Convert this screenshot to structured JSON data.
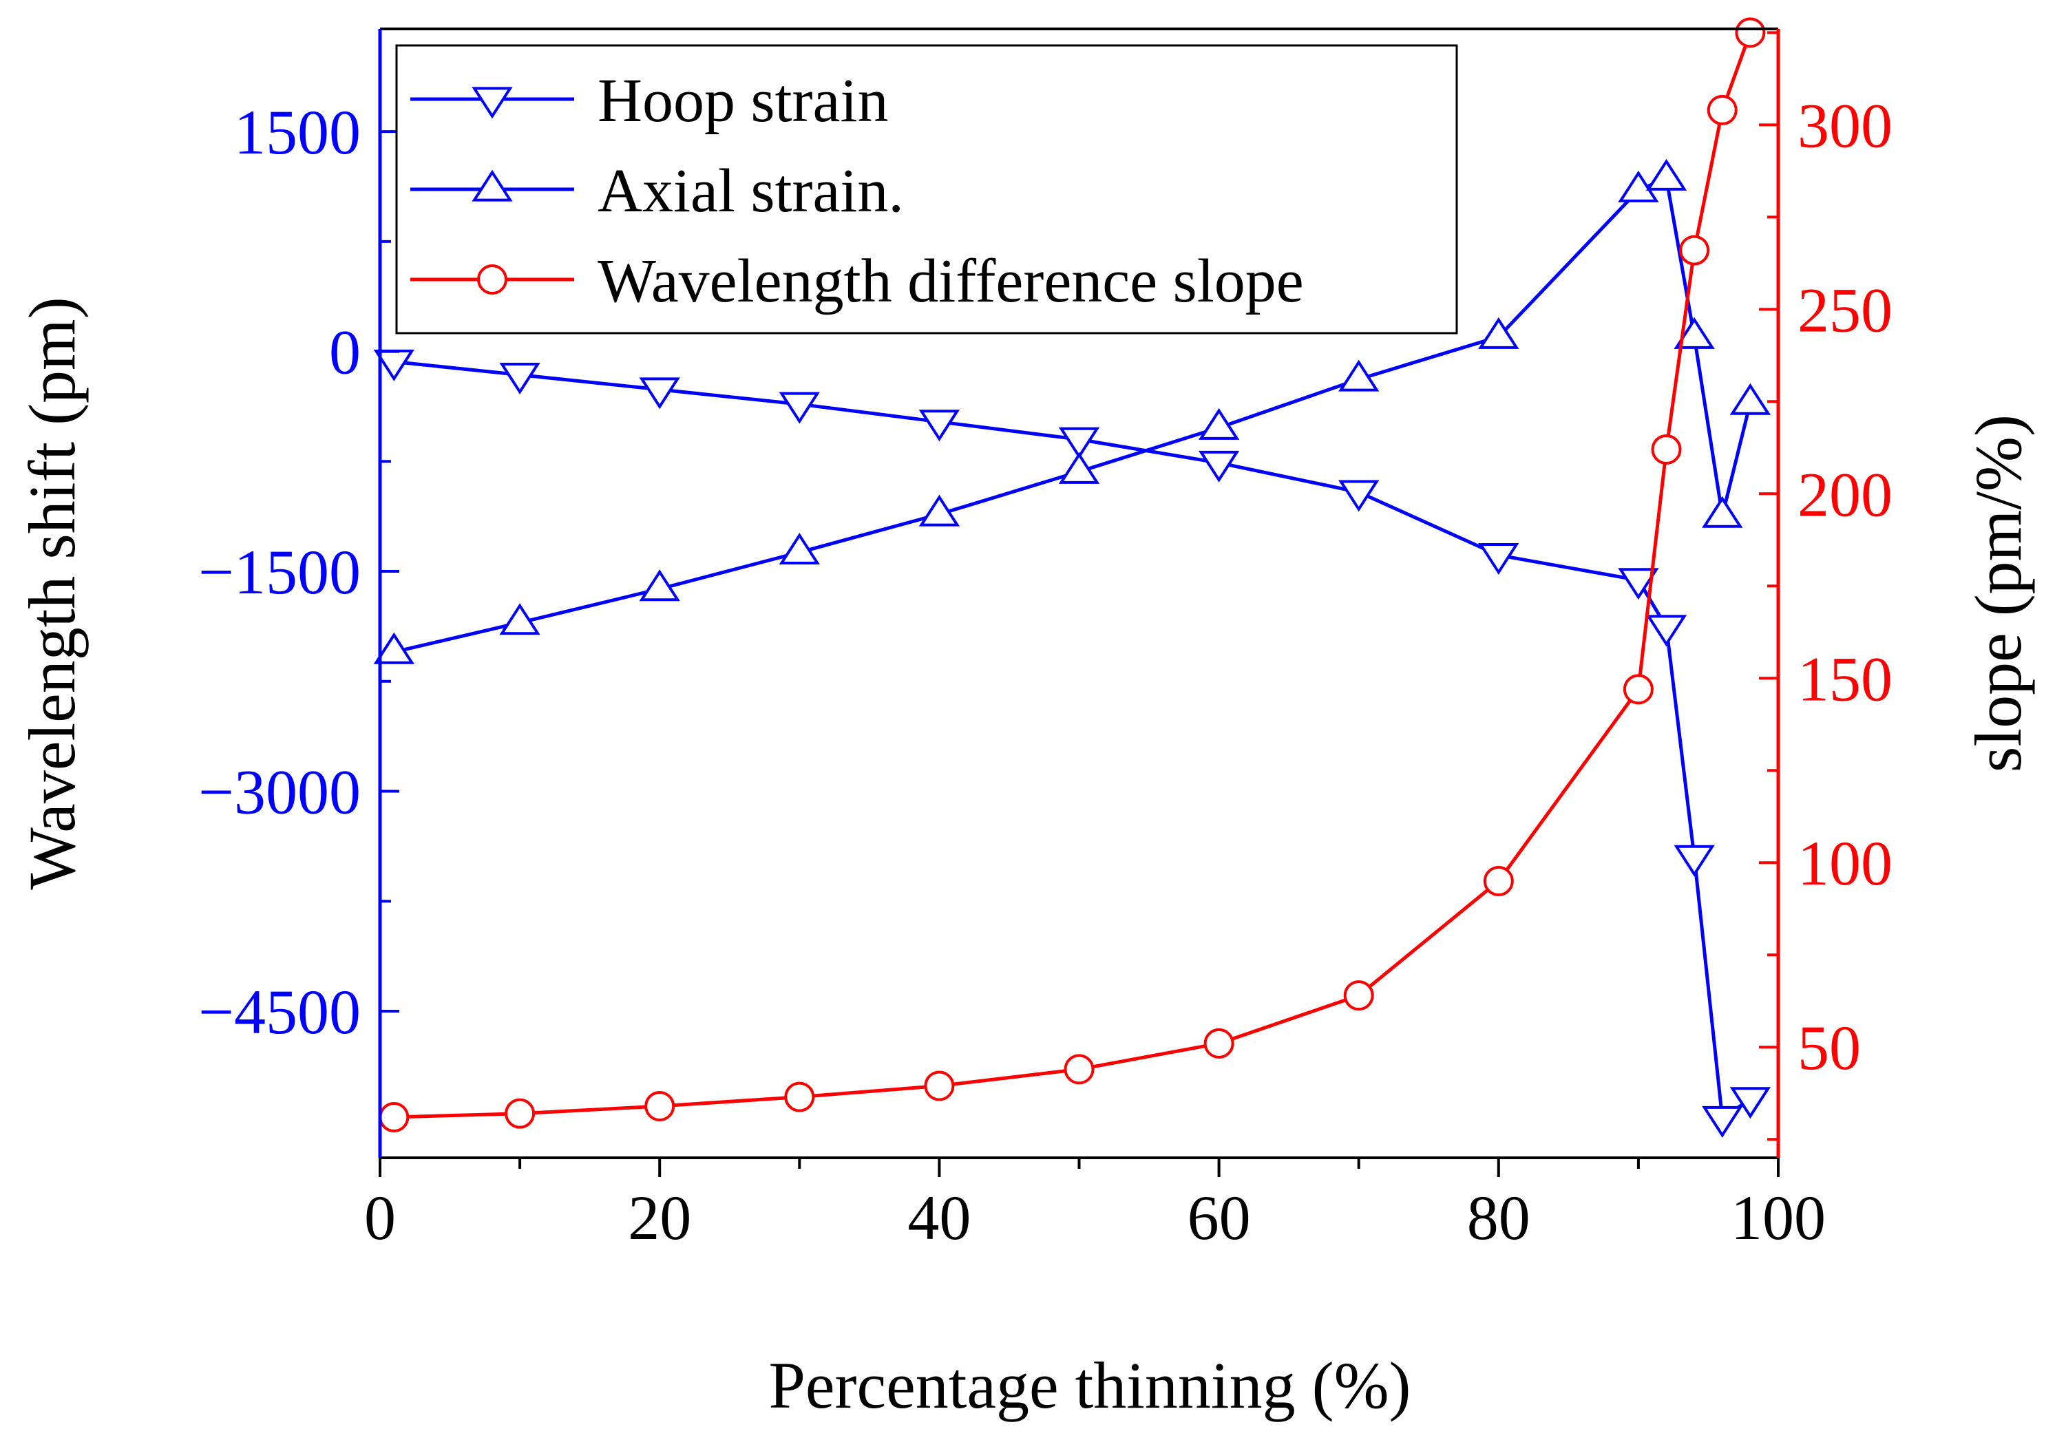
{
  "chart_data": {
    "type": "line",
    "xlabel": "Percentage thinning (%)",
    "ylabel_left": "Wavelength shift (pm)",
    "ylabel_right": "slope (pm/%)",
    "xlim": [
      0,
      100
    ],
    "ylim_left": [
      -5500,
      2200
    ],
    "ylim_right": [
      20,
      326
    ],
    "xticks": [
      0,
      20,
      40,
      60,
      80,
      100
    ],
    "yticks_left": [
      1500,
      0,
      -1500,
      -3000,
      -4500
    ],
    "yticks_left_labels": [
      "1500",
      "0",
      "−1500",
      "−3000",
      "−4500"
    ],
    "yticks_right": [
      50,
      100,
      150,
      200,
      250,
      300
    ],
    "legend_position": "top-left",
    "grid": false,
    "colors": {
      "left_axis": "#0000ff",
      "right_axis": "#ff0000",
      "hoop": "#0000ff",
      "axial": "#0000ff",
      "slope": "#ff0000"
    },
    "series": [
      {
        "name": "Hoop strain",
        "axis": "left",
        "marker": "triangle-down",
        "x": [
          1,
          10,
          20,
          30,
          40,
          50,
          60,
          70,
          80,
          90,
          92,
          94,
          96,
          98
        ],
        "y": [
          -70,
          -160,
          -260,
          -360,
          -480,
          -600,
          -760,
          -960,
          -1390,
          -1560,
          -1880,
          -3450,
          -5230,
          -5100
        ]
      },
      {
        "name": "Axial strain.",
        "axis": "left",
        "marker": "triangle-up",
        "x": [
          1,
          10,
          20,
          30,
          40,
          50,
          60,
          70,
          80,
          90,
          92,
          94,
          96,
          98
        ],
        "y": [
          -2050,
          -1850,
          -1620,
          -1370,
          -1110,
          -820,
          -520,
          -190,
          100,
          1100,
          1180,
          100,
          -1120,
          -350
        ]
      },
      {
        "name": "Wavelength difference slope",
        "axis": "right",
        "marker": "circle",
        "x": [
          1,
          10,
          20,
          30,
          40,
          50,
          60,
          70,
          80,
          90,
          92,
          94,
          96,
          98
        ],
        "y": [
          31,
          32,
          34,
          36.5,
          39.5,
          44,
          51,
          64,
          95,
          147,
          212,
          266,
          304,
          325
        ]
      }
    ]
  }
}
